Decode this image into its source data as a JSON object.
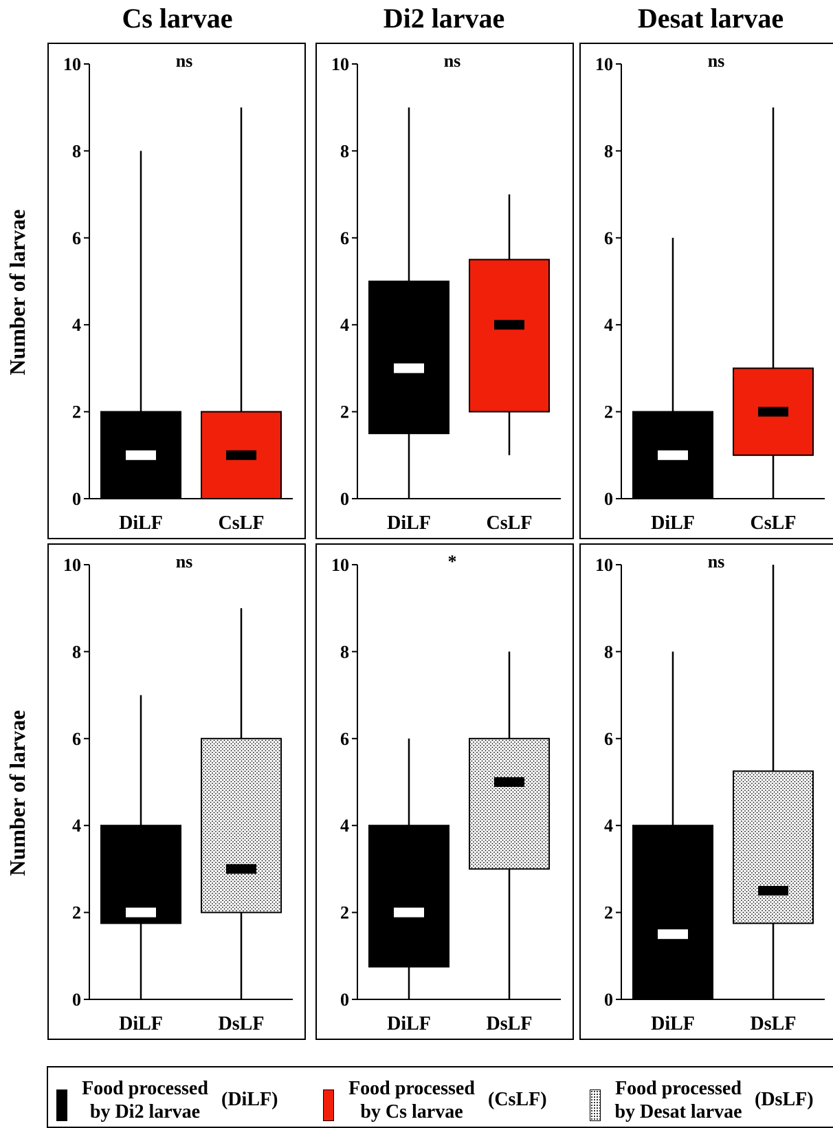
{
  "column_titles": [
    "Cs larvae",
    "Di2 larvae",
    "Desat larvae"
  ],
  "y_axis_label": "Number of larvae",
  "legend": [
    {
      "line1": "Food processed",
      "line2": "by  Di2 larvae",
      "code": "(DiLF)",
      "pattern": "solid-black"
    },
    {
      "line1": "Food processed",
      "line2": "by  Cs larvae",
      "code": "(CsLF)",
      "pattern": "solid-red"
    },
    {
      "line1": "Food processed",
      "line2": "by  Desat larvae",
      "code": "(DsLF)",
      "pattern": "stipple"
    }
  ],
  "colors": {
    "black": "#000000",
    "red": "#f0200a",
    "stipple_bg": "#ffffff",
    "stipple_dot": "#000000"
  },
  "chart_data": [
    {
      "type": "box",
      "row": 0,
      "col": 0,
      "annotation": "ns",
      "ylim": [
        0,
        10
      ],
      "yticks": [
        0,
        2,
        4,
        6,
        8,
        10
      ],
      "boxes": [
        {
          "label": "DiLF",
          "fill": "black",
          "min": 0,
          "q1": 0,
          "median": 1,
          "q3": 2,
          "max": 8
        },
        {
          "label": "CsLF",
          "fill": "red",
          "min": 0,
          "q1": 0,
          "median": 1,
          "q3": 2,
          "max": 9
        }
      ]
    },
    {
      "type": "box",
      "row": 0,
      "col": 1,
      "annotation": "ns",
      "ylim": [
        0,
        10
      ],
      "yticks": [
        0,
        2,
        4,
        6,
        8,
        10
      ],
      "boxes": [
        {
          "label": "DiLF",
          "fill": "black",
          "min": 0,
          "q1": 1.5,
          "median": 3,
          "q3": 5,
          "max": 9
        },
        {
          "label": "CsLF",
          "fill": "red",
          "min": 1,
          "q1": 2,
          "median": 4,
          "q3": 5.5,
          "max": 7
        }
      ]
    },
    {
      "type": "box",
      "row": 0,
      "col": 2,
      "annotation": "ns",
      "ylim": [
        0,
        10
      ],
      "yticks": [
        0,
        2,
        4,
        6,
        8,
        10
      ],
      "boxes": [
        {
          "label": "DiLF",
          "fill": "black",
          "min": 0,
          "q1": 0,
          "median": 1,
          "q3": 2,
          "max": 6
        },
        {
          "label": "CsLF",
          "fill": "red",
          "min": 0,
          "q1": 1,
          "median": 2,
          "q3": 3,
          "max": 9
        }
      ]
    },
    {
      "type": "box",
      "row": 1,
      "col": 0,
      "annotation": "ns",
      "ylim": [
        0,
        10
      ],
      "yticks": [
        0,
        2,
        4,
        6,
        8,
        10
      ],
      "boxes": [
        {
          "label": "DiLF",
          "fill": "black",
          "min": 0,
          "q1": 1.75,
          "median": 2,
          "q3": 4,
          "max": 7
        },
        {
          "label": "DsLF",
          "fill": "stipple",
          "min": 0,
          "q1": 2,
          "median": 3,
          "q3": 6,
          "max": 9
        }
      ]
    },
    {
      "type": "box",
      "row": 1,
      "col": 1,
      "annotation": "*",
      "ylim": [
        0,
        10
      ],
      "yticks": [
        0,
        2,
        4,
        6,
        8,
        10
      ],
      "boxes": [
        {
          "label": "DiLF",
          "fill": "black",
          "min": 0,
          "q1": 0.75,
          "median": 2,
          "q3": 4,
          "max": 6
        },
        {
          "label": "DsLF",
          "fill": "stipple",
          "min": 0,
          "q1": 3,
          "median": 5,
          "q3": 6,
          "max": 8
        }
      ]
    },
    {
      "type": "box",
      "row": 1,
      "col": 2,
      "annotation": "ns",
      "ylim": [
        0,
        10
      ],
      "yticks": [
        0,
        2,
        4,
        6,
        8,
        10
      ],
      "boxes": [
        {
          "label": "DiLF",
          "fill": "black",
          "min": 0,
          "q1": 0,
          "median": 1.5,
          "q3": 4,
          "max": 8
        },
        {
          "label": "DsLF",
          "fill": "stipple",
          "min": 0,
          "q1": 1.75,
          "median": 2.5,
          "q3": 5.25,
          "max": 10
        }
      ]
    }
  ]
}
